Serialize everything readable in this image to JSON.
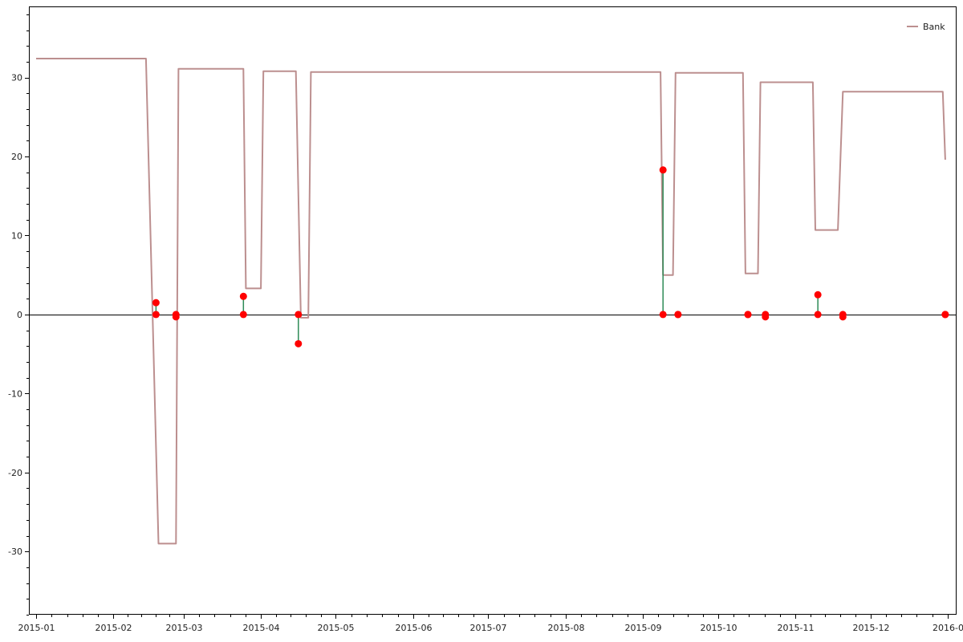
{
  "chart_data": {
    "type": "line",
    "title": "",
    "xlabel": "",
    "ylabel": "",
    "x_axis": {
      "type": "date",
      "range": [
        "2015-01-01",
        "2016-01-01"
      ],
      "ticks": [
        "2015-01-01",
        "2015-02-01",
        "2015-03-01",
        "2015-04-01",
        "2015-05-01",
        "2015-06-01",
        "2015-07-01",
        "2015-08-01",
        "2015-09-01",
        "2015-10-01",
        "2015-11-01",
        "2015-12-01",
        "2016-01-01"
      ],
      "tick_labels": [
        "2015-01",
        "2015-02",
        "2015-03",
        "2015-04",
        "2015-05",
        "2015-06",
        "2015-07",
        "2015-08",
        "2015-09",
        "2015-10",
        "2015-11",
        "2015-12",
        "2016-0"
      ]
    },
    "y_axis": {
      "range": [
        -38,
        39
      ],
      "ticks": [
        -30,
        -20,
        -10,
        0,
        10,
        20,
        30
      ],
      "tick_labels": [
        "-30",
        "-20",
        "-10",
        "0",
        "10",
        "20",
        "30"
      ],
      "minor_tick_step": 2
    },
    "legend": {
      "position": "top-right",
      "entries": [
        "Bank"
      ]
    },
    "grid": false,
    "zero_line": true,
    "colors": {
      "bank": "#bc8f8f",
      "stem": "#2e8b57",
      "marker": "#ff0000",
      "axis": "#000000"
    },
    "series": [
      {
        "name": "Bank",
        "kind": "line",
        "x": [
          "2015-01-01",
          "2015-02-14",
          "2015-02-19",
          "2015-02-20",
          "2015-02-26",
          "2015-02-27",
          "2015-03-25",
          "2015-03-26",
          "2015-04-01",
          "2015-04-02",
          "2015-04-15",
          "2015-04-17",
          "2015-04-20",
          "2015-04-21",
          "2015-09-08",
          "2015-09-09",
          "2015-09-13",
          "2015-09-14",
          "2015-10-11",
          "2015-10-12",
          "2015-10-17",
          "2015-10-18",
          "2015-11-08",
          "2015-11-09",
          "2015-11-18",
          "2015-11-19",
          "2015-11-20",
          "2015-12-30",
          "2015-12-31"
        ],
        "y": [
          32.4,
          32.4,
          -29.0,
          -29.0,
          -29.0,
          31.1,
          31.1,
          3.3,
          3.3,
          30.8,
          30.8,
          -0.4,
          -0.4,
          30.7,
          30.7,
          5.0,
          5.0,
          30.6,
          30.6,
          5.2,
          5.2,
          29.4,
          29.4,
          10.7,
          10.7,
          19.5,
          28.2,
          28.2,
          19.6
        ]
      },
      {
        "name": "",
        "kind": "stem",
        "x": [
          "2015-02-18",
          "2015-02-26",
          "2015-03-25",
          "2015-04-16",
          "2015-09-09",
          "2015-09-15",
          "2015-10-13",
          "2015-10-20",
          "2015-11-10",
          "2015-11-20",
          "2015-12-31"
        ],
        "y": [
          1.5,
          -0.3,
          2.3,
          -3.7,
          18.3,
          0.0,
          0.0,
          -0.3,
          2.5,
          -0.3,
          0.0
        ]
      }
    ]
  }
}
